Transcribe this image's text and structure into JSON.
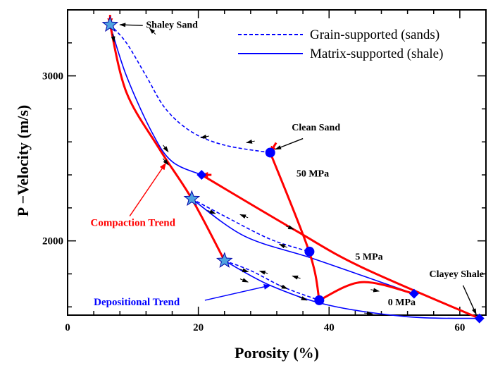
{
  "chart_data": {
    "type": "line",
    "xlabel": "Porosity (%)",
    "ylabel": "P −Velocity (m/s)",
    "xlim": [
      0,
      64
    ],
    "ylim": [
      1550,
      3400
    ],
    "x_ticks": [
      0,
      20,
      40,
      60
    ],
    "y_ticks": [
      2000,
      3000
    ],
    "y_minor_step": 200,
    "x_minor_step": 4,
    "legend": {
      "position": "top-right",
      "entries": [
        {
          "label": "Grain-supported (sands)",
          "style": "dashed",
          "color": "#0000ff"
        },
        {
          "label": "Matrix-supported (shale)",
          "style": "solid",
          "color": "#0000ff"
        }
      ]
    },
    "series": [
      {
        "name": "Grain-supported (sands)",
        "style": "dashed",
        "color": "#0000ff",
        "points": [
          [
            6.5,
            3310
          ],
          [
            9,
            3200
          ],
          [
            12,
            3000
          ],
          [
            15,
            2800
          ],
          [
            19,
            2660
          ],
          [
            24,
            2580
          ],
          [
            31,
            2535
          ]
        ]
      },
      {
        "name": "Grain-supported (sands)",
        "style": "dashed",
        "color": "#0000ff",
        "points": [
          [
            19,
            2255
          ],
          [
            24,
            2150
          ],
          [
            31,
            2010
          ],
          [
            37,
            1935
          ]
        ]
      },
      {
        "name": "Grain-supported (sands)",
        "style": "dashed",
        "color": "#0000ff",
        "points": [
          [
            24,
            1880
          ],
          [
            28,
            1820
          ],
          [
            33,
            1720
          ],
          [
            38.5,
            1640
          ]
        ]
      },
      {
        "name": "Matrix-supported (shale)",
        "style": "solid",
        "color": "#0000ff",
        "points": [
          [
            6.5,
            3310
          ],
          [
            9,
            3000
          ],
          [
            13,
            2650
          ],
          [
            16,
            2480
          ],
          [
            20.5,
            2400
          ]
        ]
      },
      {
        "name": "Matrix-supported (shale)",
        "style": "solid",
        "color": "#0000ff",
        "points": [
          [
            19,
            2255
          ],
          [
            27,
            2030
          ],
          [
            37,
            1900
          ],
          [
            45,
            1790
          ],
          [
            53,
            1680
          ]
        ]
      },
      {
        "name": "Matrix-supported (shale)",
        "style": "solid",
        "color": "#0000ff",
        "points": [
          [
            24,
            1880
          ],
          [
            31,
            1730
          ],
          [
            40,
            1610
          ],
          [
            52,
            1540
          ],
          [
            63,
            1530
          ]
        ]
      },
      {
        "name": "Compaction",
        "style": "solid",
        "color": "#ff0000",
        "points": [
          [
            63,
            1530
          ],
          [
            45,
            1840
          ],
          [
            35,
            2060
          ],
          [
            20.5,
            2400
          ]
        ]
      },
      {
        "name": "Compaction",
        "style": "solid",
        "color": "#ff0000",
        "points": [
          [
            53,
            1680
          ],
          [
            45,
            1750
          ],
          [
            38.5,
            1640
          ]
        ]
      },
      {
        "name": "Compaction",
        "style": "solid",
        "color": "#ff0000",
        "points": [
          [
            38.5,
            1640
          ],
          [
            37,
            1930
          ],
          [
            31,
            2535
          ]
        ]
      },
      {
        "name": "Compaction",
        "style": "solid",
        "color": "#ff0000",
        "points": [
          [
            6.5,
            3310
          ],
          [
            9,
            2900
          ],
          [
            14,
            2560
          ],
          [
            19,
            2255
          ],
          [
            24,
            1880
          ]
        ]
      }
    ],
    "markers": {
      "stars": [
        [
          6.5,
          3310
        ],
        [
          19,
          2255
        ],
        [
          24,
          1880
        ]
      ],
      "circles": [
        [
          31,
          2535
        ],
        [
          37,
          1935
        ],
        [
          38.5,
          1640
        ]
      ],
      "diamonds": [
        [
          20.5,
          2400
        ],
        [
          53,
          1680
        ],
        [
          63,
          1530
        ]
      ],
      "star_color": "#4fa3e0",
      "circle_color": "#0000ff",
      "diamond_color": "#0000ff"
    },
    "arrowheads": {
      "red": [
        [
          20.5,
          2400,
          -1,
          0
        ],
        [
          31,
          2535,
          -0.6,
          1
        ],
        [
          6.5,
          3310,
          0,
          1
        ]
      ]
    },
    "direction_arrows": [
      [
        7,
        3230,
        0.2,
        -1
      ],
      [
        13,
        3270,
        -0.6,
        0.6
      ],
      [
        21,
        2630,
        -1,
        -0.2
      ],
      [
        28,
        2600,
        -1,
        -0.2
      ],
      [
        15,
        2560,
        0.6,
        -0.8
      ],
      [
        15,
        2480,
        0.6,
        -0.7
      ],
      [
        22,
        2175,
        1,
        -0.4
      ],
      [
        27,
        2150,
        -1,
        0.4
      ],
      [
        34,
        2080,
        1,
        -0.4
      ],
      [
        33,
        1970,
        -1,
        0.4
      ],
      [
        27,
        1820,
        1,
        -0.3
      ],
      [
        30,
        1810,
        -1,
        0.3
      ],
      [
        35,
        1780,
        -1,
        0.3
      ],
      [
        27,
        1760,
        1,
        -0.4
      ],
      [
        33,
        1720,
        1,
        -0.4
      ],
      [
        36,
        1650,
        1,
        -0.4
      ],
      [
        47,
        1700,
        1,
        -0.2
      ],
      [
        46,
        1560,
        1,
        -0.1
      ]
    ],
    "annotations": [
      {
        "id": "shaley-sand",
        "text": "Shaley Sand",
        "x": 12,
        "y": 3290,
        "color": "#000000",
        "weight": "bold",
        "anchor": "start",
        "arrow": [
          [
            11.5,
            3305
          ],
          [
            8,
            3310
          ]
        ]
      },
      {
        "id": "clean-sand",
        "text": "Clean Sand",
        "x": 38,
        "y": 2670,
        "color": "#000000",
        "weight": "bold",
        "anchor": "middle",
        "arrow": [
          [
            36,
            2620
          ],
          [
            31.8,
            2555
          ]
        ]
      },
      {
        "id": "mpa-50",
        "text": "50 MPa",
        "x": 35,
        "y": 2390,
        "color": "#000000",
        "weight": "bold",
        "anchor": "start"
      },
      {
        "id": "mpa-5",
        "text": "5 MPa",
        "x": 44,
        "y": 1885,
        "color": "#000000",
        "weight": "bold",
        "anchor": "start"
      },
      {
        "id": "mpa-0",
        "text": "0 MPa",
        "x": 49,
        "y": 1610,
        "color": "#000000",
        "weight": "bold",
        "anchor": "start"
      },
      {
        "id": "clayey-shale",
        "text": "Clayey Shale",
        "x": 59.5,
        "y": 1780,
        "color": "#000000",
        "weight": "bold",
        "anchor": "middle",
        "arrow": [
          [
            60.5,
            1730
          ],
          [
            62.5,
            1555
          ]
        ]
      },
      {
        "id": "compaction-trend",
        "text": "Compaction Trend",
        "x": 3.5,
        "y": 2090,
        "color": "#ff0000",
        "weight": "bold",
        "anchor": "start",
        "arrow": [
          [
            9.5,
            2150
          ],
          [
            15,
            2470
          ]
        ]
      },
      {
        "id": "depositional-trend",
        "text": "Depositional Trend",
        "x": 4,
        "y": 1610,
        "color": "#0000ff",
        "weight": "bold",
        "anchor": "start",
        "arrow": [
          [
            21,
            1640
          ],
          [
            31,
            1730
          ]
        ]
      }
    ]
  }
}
